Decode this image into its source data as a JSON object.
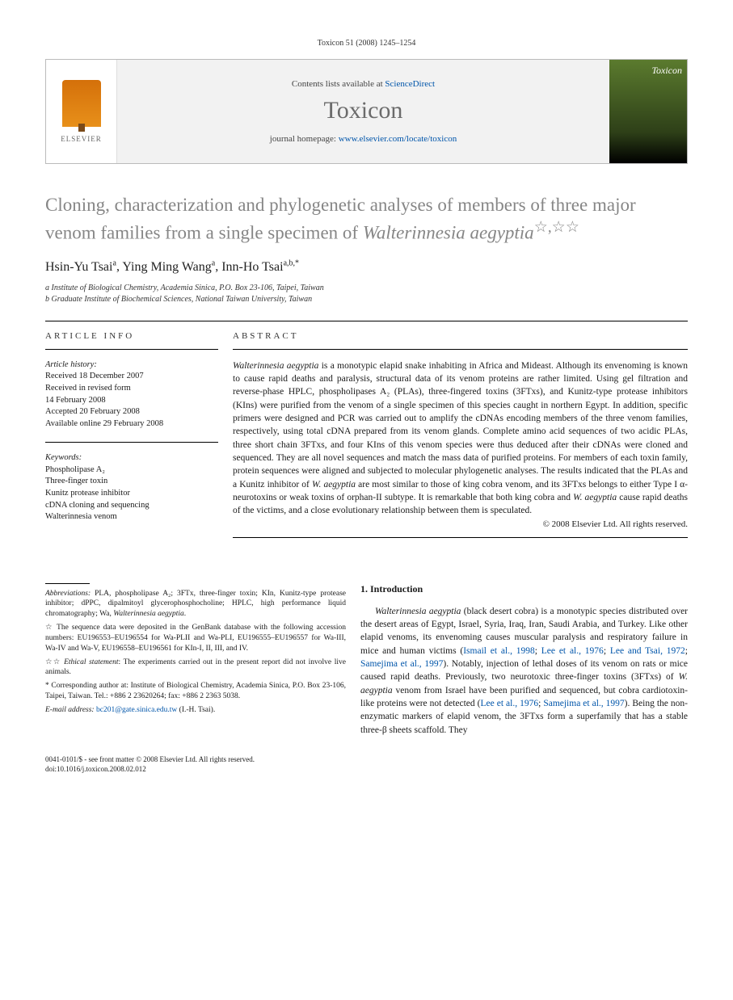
{
  "header": {
    "citation": "Toxicon 51 (2008) 1245–1254"
  },
  "masthead": {
    "publisher_label": "ELSEVIER",
    "contents_prefix": "Contents lists available at ",
    "contents_link": "ScienceDirect",
    "journal_name": "Toxicon",
    "homepage_prefix": "journal homepage: ",
    "homepage_url": "www.elsevier.com/locate/toxicon",
    "cover_label": "Toxicon"
  },
  "article": {
    "title_pre": "Cloning, characterization and phylogenetic analyses of members of three major venom families from a single specimen of ",
    "title_species": "Walterinnesia aegyptia",
    "title_marks": "☆,☆☆",
    "authors": [
      {
        "name": "Hsin-Yu Tsai",
        "aff": "a"
      },
      {
        "name": "Ying Ming Wang",
        "aff": "a"
      },
      {
        "name": "Inn-Ho Tsai",
        "aff": "a,b,*"
      }
    ],
    "affiliations": [
      "a Institute of Biological Chemistry, Academia Sinica, P.O. Box 23-106, Taipei, Taiwan",
      "b Graduate Institute of Biochemical Sciences, National Taiwan University, Taiwan"
    ]
  },
  "info": {
    "head": "ARTICLE INFO",
    "history_label": "Article history:",
    "history": [
      "Received 18 December 2007",
      "Received in revised form",
      "14 February 2008",
      "Accepted 20 February 2008",
      "Available online 29 February 2008"
    ],
    "keywords_label": "Keywords:",
    "keywords": [
      "Phospholipase A₂",
      "Three-finger toxin",
      "Kunitz protease inhibitor",
      "cDNA cloning and sequencing",
      "Walterinnesia venom"
    ]
  },
  "abstract": {
    "head": "ABSTRACT",
    "text": "Walterinnesia aegyptia is a monotypic elapid snake inhabiting in Africa and Mideast. Although its envenoming is known to cause rapid deaths and paralysis, structural data of its venom proteins are rather limited. Using gel filtration and reverse-phase HPLC, phospholipases A₂ (PLAs), three-fingered toxins (3FTxs), and Kunitz-type protease inhibitors (KIns) were purified from the venom of a single specimen of this species caught in northern Egypt. In addition, specific primers were designed and PCR was carried out to amplify the cDNAs encoding members of the three venom families, respectively, using total cDNA prepared from its venom glands. Complete amino acid sequences of two acidic PLAs, three short chain 3FTxs, and four KIns of this venom species were thus deduced after their cDNAs were cloned and sequenced. They are all novel sequences and match the mass data of purified proteins. For members of each toxin family, protein sequences were aligned and subjected to molecular phylogenetic analyses. The results indicated that the PLAs and a Kunitz inhibitor of W. aegyptia are most similar to those of king cobra venom, and its 3FTxs belongs to either Type I α-neurotoxins or weak toxins of orphan-II subtype. It is remarkable that both king cobra and W. aegyptia cause rapid deaths of the victims, and a close evolutionary relationship between them is speculated.",
    "copyright": "© 2008 Elsevier Ltd. All rights reserved."
  },
  "footnotes": {
    "abbrev": "Abbreviations: PLA, phospholipase A₂; 3FTx, three-finger toxin; KIn, Kunitz-type protease inhibitor; dPPC, dipalmitoyl glycerophosphocholine; HPLC, high performance liquid chromatography; Wa, Walterinnesia aegyptia.",
    "star1": "☆ The sequence data were deposited in the GenBank database with the following accession numbers: EU196553–EU196554 for Wa-PLII and Wa-PLI, EU196555–EU196557 for Wa-III, Wa-IV and Wa-V, EU196558–EU196561 for KIn-I, II, III, and IV.",
    "star2": "☆☆ Ethical statement: The experiments carried out in the present report did not involve live animals.",
    "corr": "* Corresponding author at: Institute of Biological Chemistry, Academia Sinica, P.O. Box 23-106, Taipei, Taiwan. Tel.: +886 2 23620264; fax: +886 2 2363 5038.",
    "email_label": "E-mail address: ",
    "email": "bc201@gate.sinica.edu.tw",
    "email_suffix": " (I.-H. Tsai)."
  },
  "intro": {
    "head": "1.  Introduction",
    "text_parts": [
      {
        "t": "Walterinnesia aegyptia",
        "cls": "species"
      },
      {
        "t": " (black desert cobra) is a monotypic species distributed over the desert areas of Egypt, Israel, Syria, Iraq, Iran, Saudi Arabia, and Turkey. Like other elapid venoms, its envenoming causes muscular paralysis and respiratory failure in mice and human victims ("
      },
      {
        "t": "Ismail et al., 1998",
        "cls": "ref"
      },
      {
        "t": "; "
      },
      {
        "t": "Lee et al., 1976",
        "cls": "ref"
      },
      {
        "t": "; "
      },
      {
        "t": "Lee and Tsai, 1972",
        "cls": "ref"
      },
      {
        "t": "; "
      },
      {
        "t": "Samejima et al., 1997",
        "cls": "ref"
      },
      {
        "t": "). Notably, injection of lethal doses of its venom on rats or mice caused rapid deaths. Previously, two neurotoxic three-finger toxins (3FTxs) of "
      },
      {
        "t": "W. aegyptia",
        "cls": "species"
      },
      {
        "t": " venom from Israel have been purified and sequenced, but cobra cardiotoxin-like proteins were not detected ("
      },
      {
        "t": "Lee et al., 1976",
        "cls": "ref"
      },
      {
        "t": "; "
      },
      {
        "t": "Samejima et al., 1997",
        "cls": "ref"
      },
      {
        "t": "). Being the non-enzymatic markers of elapid venom, the 3FTxs form a superfamily that has a stable three-β sheets scaffold. They"
      }
    ]
  },
  "bottom": {
    "line1": "0041-0101/$ - see front matter © 2008 Elsevier Ltd. All rights reserved.",
    "line2": "doi:10.1016/j.toxicon.2008.02.012"
  },
  "colors": {
    "title_grey": "#868686",
    "link_blue": "#0055aa",
    "masthead_bg": "#f2f2f2"
  }
}
